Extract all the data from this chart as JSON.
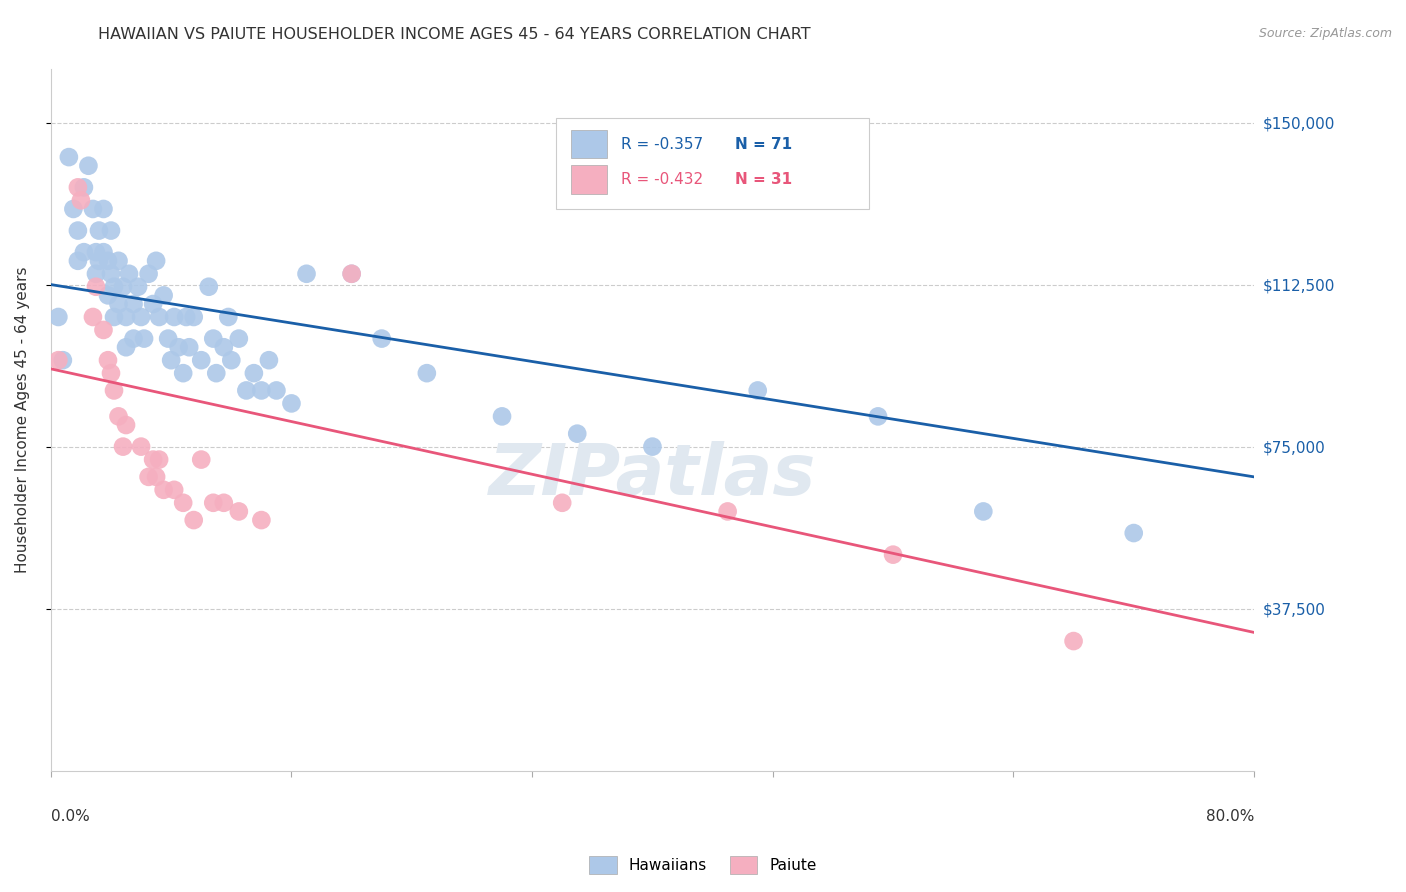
{
  "title": "HAWAIIAN VS PAIUTE HOUSEHOLDER INCOME AGES 45 - 64 YEARS CORRELATION CHART",
  "source": "Source: ZipAtlas.com",
  "ylabel": "Householder Income Ages 45 - 64 years",
  "ytick_labels": [
    "$37,500",
    "$75,000",
    "$112,500",
    "$150,000"
  ],
  "ytick_values": [
    37500,
    75000,
    112500,
    150000
  ],
  "ymin": 0,
  "ymax": 162500,
  "xmin": 0.0,
  "xmax": 0.8,
  "legend_hawaiian_R": "R = -0.357",
  "legend_hawaiian_N": "N = 71",
  "legend_paiute_R": "R = -0.432",
  "legend_paiute_N": "N = 31",
  "color_hawaiian": "#adc8e8",
  "color_paiute": "#f5afc0",
  "line_color_hawaiian": "#1a5fa8",
  "line_color_paiute": "#e8567a",
  "hawaiian_x": [
    0.005,
    0.008,
    0.012,
    0.015,
    0.018,
    0.018,
    0.022,
    0.022,
    0.025,
    0.028,
    0.03,
    0.03,
    0.032,
    0.032,
    0.035,
    0.035,
    0.038,
    0.038,
    0.04,
    0.04,
    0.042,
    0.042,
    0.045,
    0.045,
    0.048,
    0.05,
    0.05,
    0.052,
    0.055,
    0.055,
    0.058,
    0.06,
    0.062,
    0.065,
    0.068,
    0.07,
    0.072,
    0.075,
    0.078,
    0.08,
    0.082,
    0.085,
    0.088,
    0.09,
    0.092,
    0.095,
    0.1,
    0.105,
    0.108,
    0.11,
    0.115,
    0.118,
    0.12,
    0.125,
    0.13,
    0.135,
    0.14,
    0.145,
    0.15,
    0.16,
    0.17,
    0.2,
    0.22,
    0.25,
    0.3,
    0.35,
    0.4,
    0.47,
    0.55,
    0.62,
    0.72
  ],
  "hawaiian_y": [
    105000,
    95000,
    142000,
    130000,
    118000,
    125000,
    135000,
    120000,
    140000,
    130000,
    120000,
    115000,
    125000,
    118000,
    130000,
    120000,
    118000,
    110000,
    125000,
    115000,
    112000,
    105000,
    118000,
    108000,
    112000,
    105000,
    98000,
    115000,
    108000,
    100000,
    112000,
    105000,
    100000,
    115000,
    108000,
    118000,
    105000,
    110000,
    100000,
    95000,
    105000,
    98000,
    92000,
    105000,
    98000,
    105000,
    95000,
    112000,
    100000,
    92000,
    98000,
    105000,
    95000,
    100000,
    88000,
    92000,
    88000,
    95000,
    88000,
    85000,
    115000,
    115000,
    100000,
    92000,
    82000,
    78000,
    75000,
    88000,
    82000,
    60000,
    55000
  ],
  "paiute_x": [
    0.005,
    0.018,
    0.02,
    0.028,
    0.03,
    0.035,
    0.038,
    0.04,
    0.042,
    0.045,
    0.048,
    0.05,
    0.06,
    0.065,
    0.068,
    0.07,
    0.072,
    0.075,
    0.082,
    0.088,
    0.095,
    0.1,
    0.108,
    0.115,
    0.125,
    0.14,
    0.2,
    0.34,
    0.45,
    0.56,
    0.68
  ],
  "paiute_y": [
    95000,
    135000,
    132000,
    105000,
    112000,
    102000,
    95000,
    92000,
    88000,
    82000,
    75000,
    80000,
    75000,
    68000,
    72000,
    68000,
    72000,
    65000,
    65000,
    62000,
    58000,
    72000,
    62000,
    62000,
    60000,
    58000,
    115000,
    62000,
    60000,
    50000,
    30000
  ],
  "title_fontsize": 11,
  "source_fontsize": 9,
  "axis_label_fontsize": 10,
  "tick_fontsize": 10
}
